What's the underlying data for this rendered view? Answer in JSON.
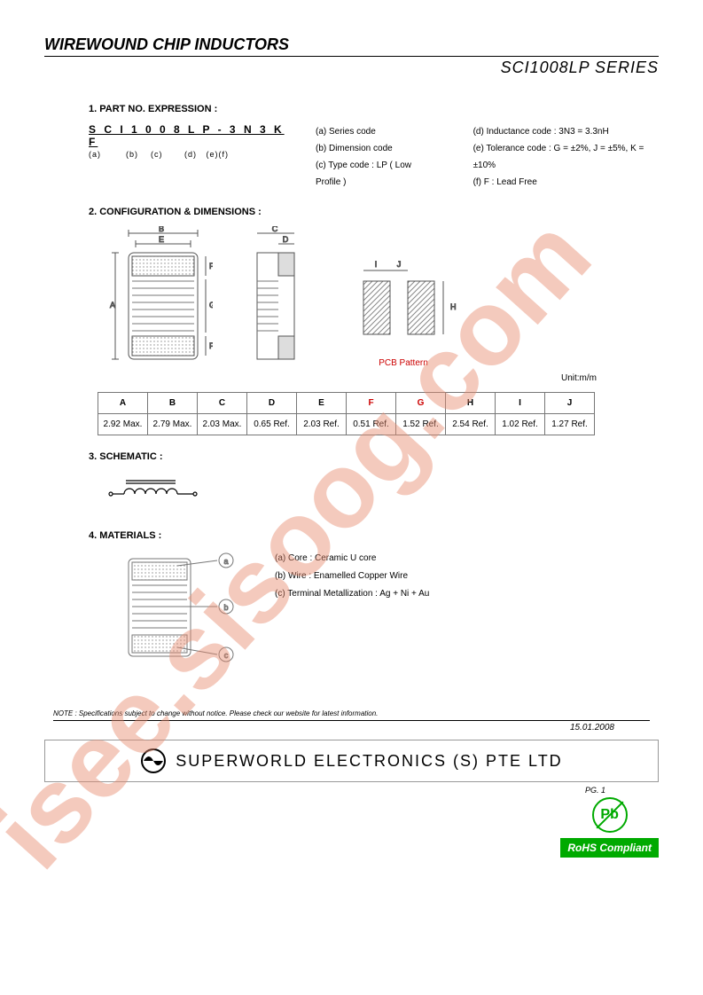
{
  "header_title": "WIREWOUND CHIP INDUCTORS",
  "series": "SCI1008LP SERIES",
  "section1": {
    "heading": "1. PART NO. EXPRESSION :",
    "code": "S C I 1 0 0 8 L P - 3 N 3 K F",
    "labels": "(a)        (b)    (c)       (d)   (e)(f)",
    "legend_left": {
      "a": "(a) Series code",
      "b": "(b) Dimension code",
      "c": "(c) Type code : LP ( Low Profile )"
    },
    "legend_right": {
      "d": "(d) Inductance code : 3N3 = 3.3nH",
      "e": "(e) Tolerance code : G = ±2%, J = ±5%, K = ±10%",
      "f": "(f) F : Lead Free"
    }
  },
  "section2": {
    "heading": "2. CONFIGURATION & DIMENSIONS :",
    "pcb_label": "PCB Pattern",
    "unit": "Unit:m/m",
    "columns": [
      "A",
      "B",
      "C",
      "D",
      "E",
      "F",
      "G",
      "H",
      "I",
      "J"
    ],
    "values": [
      "2.92 Max.",
      "2.79 Max.",
      "2.03 Max.",
      "0.65 Ref.",
      "2.03 Ref.",
      "0.51 Ref.",
      "1.52 Ref.",
      "2.54 Ref.",
      "1.02 Ref.",
      "1.27 Ref."
    ],
    "header_colors": [
      "#000",
      "#000",
      "#000",
      "#000",
      "#000",
      "#c00",
      "#c00",
      "#000",
      "#000",
      "#000"
    ]
  },
  "section3": {
    "heading": "3. SCHEMATIC :"
  },
  "section4": {
    "heading": "4. MATERIALS :",
    "a": "(a) Core : Ceramic U core",
    "b": "(b) Wire : Enamelled Copper Wire",
    "c": "(c) Terminal Metallization : Ag + Ni + Au"
  },
  "footer": {
    "note": "NOTE : Specifications subject to change without notice. Please check our website for latest information.",
    "date": "15.01.2008",
    "company": "SUPERWORLD  ELECTRONICS  (S)  PTE  LTD",
    "page": "PG. 1"
  },
  "badges": {
    "pb": "Pb",
    "rohs": "RoHS Compliant"
  },
  "watermark_text": "isee.sisoog.com",
  "colors": {
    "red": "#c00000",
    "green": "#00a000",
    "watermark": "#e88b6f",
    "border": "#777777"
  }
}
